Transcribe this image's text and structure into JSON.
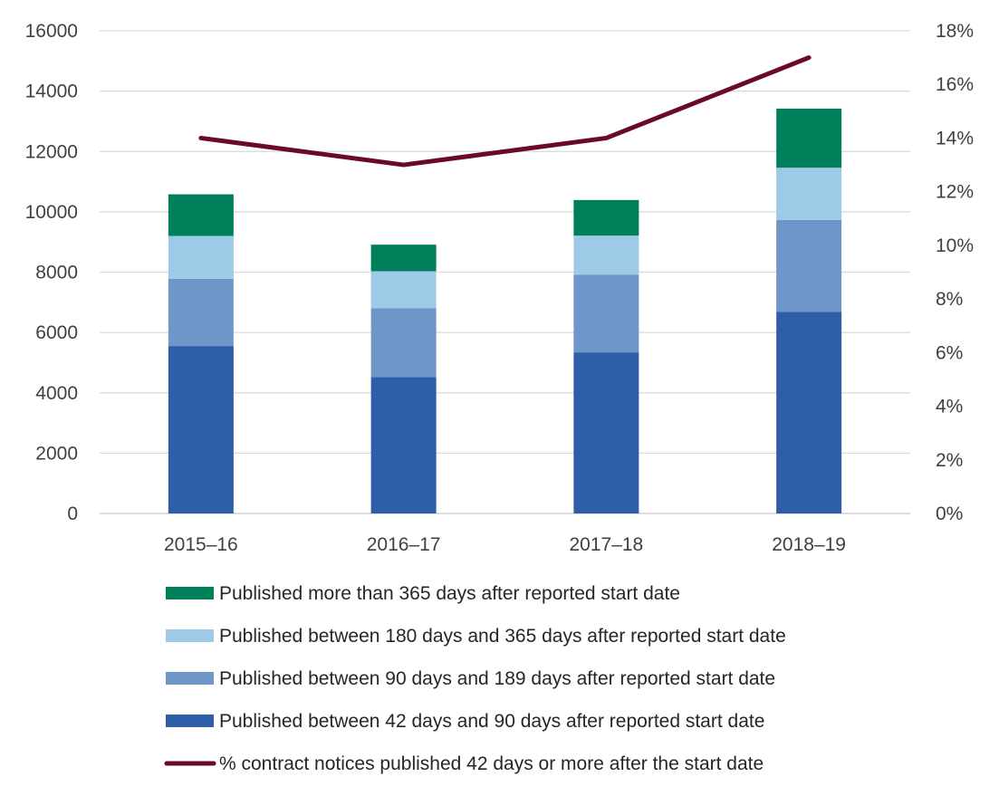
{
  "chart_data": {
    "type": "bar",
    "stacked": true,
    "categories": [
      "2015–16",
      "2016–17",
      "2017–18",
      "2018–19"
    ],
    "series": [
      {
        "name": "Published between 42 days and 90 days after reported start date",
        "color": "#2e5ea8",
        "values": [
          5550,
          4520,
          5340,
          6680
        ]
      },
      {
        "name": "Published between 90 days and 189 days after reported start date",
        "color": "#6f96c9",
        "values": [
          2230,
          2280,
          2580,
          3050
        ]
      },
      {
        "name": "Published between 180 days and 365 days after reported start date",
        "color": "#9dcae6",
        "values": [
          1420,
          1230,
          1290,
          1730
        ]
      },
      {
        "name": "Published more than 365 days after reported start date",
        "color": "#00805a",
        "values": [
          1380,
          880,
          1180,
          1960
        ]
      }
    ],
    "line_series": {
      "name": "% contract notices published 42 days or more after the start date",
      "color": "#6b0a26",
      "axis": "right",
      "values": [
        14,
        13,
        14,
        17
      ]
    },
    "y_left": {
      "min": 0,
      "max": 16000,
      "ticks": [
        "0",
        "2000",
        "4000",
        "6000",
        "8000",
        "10000",
        "12000",
        "14000",
        "16000"
      ]
    },
    "y_right": {
      "min": 0,
      "max": 18,
      "ticks": [
        "0%",
        "2%",
        "4%",
        "6%",
        "8%",
        "10%",
        "12%",
        "14%",
        "16%",
        "18%"
      ]
    },
    "grid": true,
    "legend_placement": "bottom",
    "legend_order": [
      "Published more than 365 days after reported start date",
      "Published between 180 days and 365 days after reported start date",
      "Published between 90 days and 189 days after reported start date",
      "Published between 42 days and 90 days after reported start date",
      "% contract notices published 42 days or more after the start date"
    ]
  }
}
